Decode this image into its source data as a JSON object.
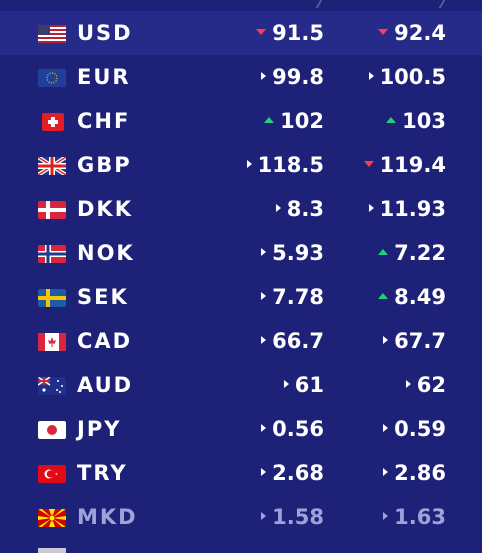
{
  "rates": [
    {
      "code": "USD",
      "flag": "us-flag-icon",
      "buy": "91.5",
      "buy_trend": "down",
      "sell": "92.4",
      "sell_trend": "down",
      "highlight": true
    },
    {
      "code": "EUR",
      "flag": "eu-flag-icon",
      "buy": "99.8",
      "buy_trend": "same",
      "sell": "100.5",
      "sell_trend": "same"
    },
    {
      "code": "CHF",
      "flag": "ch-flag-icon",
      "buy": "102",
      "buy_trend": "up",
      "sell": "103",
      "sell_trend": "up"
    },
    {
      "code": "GBP",
      "flag": "gb-flag-icon",
      "buy": "118.5",
      "buy_trend": "same",
      "sell": "119.4",
      "sell_trend": "down"
    },
    {
      "code": "DKK",
      "flag": "dk-flag-icon",
      "buy": "8.3",
      "buy_trend": "same",
      "sell": "11.93",
      "sell_trend": "same"
    },
    {
      "code": "NOK",
      "flag": "no-flag-icon",
      "buy": "5.93",
      "buy_trend": "same",
      "sell": "7.22",
      "sell_trend": "up"
    },
    {
      "code": "SEK",
      "flag": "se-flag-icon",
      "buy": "7.78",
      "buy_trend": "same",
      "sell": "8.49",
      "sell_trend": "up"
    },
    {
      "code": "CAD",
      "flag": "ca-flag-icon",
      "buy": "66.7",
      "buy_trend": "same",
      "sell": "67.7",
      "sell_trend": "same"
    },
    {
      "code": "AUD",
      "flag": "au-flag-icon",
      "buy": "61",
      "buy_trend": "same",
      "sell": "62",
      "sell_trend": "same"
    },
    {
      "code": "JPY",
      "flag": "jp-flag-icon",
      "buy": "0.56",
      "buy_trend": "same",
      "sell": "0.59",
      "sell_trend": "same"
    },
    {
      "code": "TRY",
      "flag": "tr-flag-icon",
      "buy": "2.68",
      "buy_trend": "same",
      "sell": "2.86",
      "sell_trend": "same"
    },
    {
      "code": "MKD",
      "flag": "mk-flag-icon",
      "buy": "1.58",
      "buy_trend": "same",
      "sell": "1.63",
      "sell_trend": "same",
      "muted": true
    }
  ],
  "colors": {
    "background": "#1d2178",
    "highlight_row": "#262b8a",
    "up": "#22d07a",
    "down": "#ff3b54"
  }
}
